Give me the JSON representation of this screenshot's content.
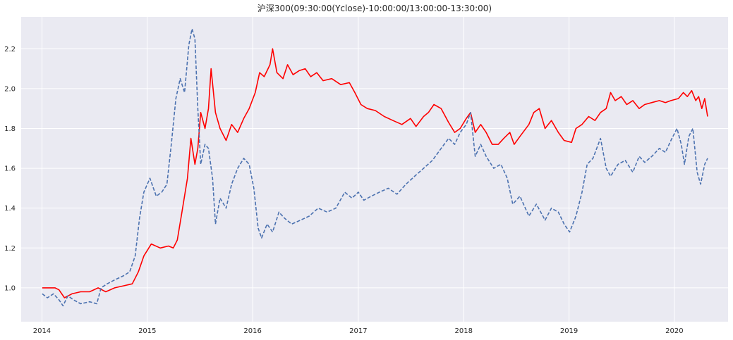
{
  "chart_data": {
    "type": "line",
    "title": "沪深300(09:30:00(Yclose)-10:00:00/13:00:00-13:30:00)",
    "xlabel": "",
    "ylabel": "",
    "x_range": [
      "2013-10-21",
      "2020-07-05"
    ],
    "y_range": [
      0.83,
      2.36
    ],
    "x_ticks": [
      "2014",
      "2015",
      "2016",
      "2017",
      "2018",
      "2019",
      "2020"
    ],
    "y_ticks": [
      "1.0",
      "1.2",
      "1.4",
      "1.6",
      "1.8",
      "2.0",
      "2.2"
    ],
    "y_tick_values": [
      1.0,
      1.2,
      1.4,
      1.6,
      1.8,
      2.0,
      2.2
    ],
    "grid": true,
    "background": "#EAEAF2",
    "series": [
      {
        "color": "#FF0000",
        "style": "solid",
        "points": [
          [
            "2014-01-02",
            1.0
          ],
          [
            "2014-02-15",
            1.0
          ],
          [
            "2014-03-01",
            0.99
          ],
          [
            "2014-03-20",
            0.95
          ],
          [
            "2014-04-15",
            0.97
          ],
          [
            "2014-05-15",
            0.98
          ],
          [
            "2014-06-15",
            0.98
          ],
          [
            "2014-07-15",
            1.0
          ],
          [
            "2014-08-10",
            0.98
          ],
          [
            "2014-09-10",
            1.0
          ],
          [
            "2014-10-10",
            1.01
          ],
          [
            "2014-11-10",
            1.02
          ],
          [
            "2014-12-01",
            1.08
          ],
          [
            "2014-12-20",
            1.16
          ],
          [
            "2015-01-15",
            1.22
          ],
          [
            "2015-02-15",
            1.2
          ],
          [
            "2015-03-15",
            1.21
          ],
          [
            "2015-04-01",
            1.2
          ],
          [
            "2015-04-15",
            1.24
          ],
          [
            "2015-05-01",
            1.38
          ],
          [
            "2015-05-20",
            1.55
          ],
          [
            "2015-06-01",
            1.75
          ],
          [
            "2015-06-15",
            1.62
          ],
          [
            "2015-06-25",
            1.7
          ],
          [
            "2015-07-05",
            1.88
          ],
          [
            "2015-07-20",
            1.8
          ],
          [
            "2015-08-01",
            1.9
          ],
          [
            "2015-08-10",
            2.1
          ],
          [
            "2015-08-25",
            1.88
          ],
          [
            "2015-09-10",
            1.8
          ],
          [
            "2015-10-01",
            1.74
          ],
          [
            "2015-10-20",
            1.82
          ],
          [
            "2015-11-10",
            1.78
          ],
          [
            "2015-12-01",
            1.85
          ],
          [
            "2015-12-20",
            1.9
          ],
          [
            "2016-01-10",
            1.98
          ],
          [
            "2016-01-25",
            2.08
          ],
          [
            "2016-02-10",
            2.06
          ],
          [
            "2016-03-01",
            2.12
          ],
          [
            "2016-03-10",
            2.2
          ],
          [
            "2016-03-25",
            2.08
          ],
          [
            "2016-04-15",
            2.05
          ],
          [
            "2016-05-01",
            2.12
          ],
          [
            "2016-05-20",
            2.07
          ],
          [
            "2016-06-10",
            2.09
          ],
          [
            "2016-07-01",
            2.1
          ],
          [
            "2016-07-20",
            2.06
          ],
          [
            "2016-08-10",
            2.08
          ],
          [
            "2016-09-01",
            2.04
          ],
          [
            "2016-10-01",
            2.05
          ],
          [
            "2016-11-01",
            2.02
          ],
          [
            "2016-12-01",
            2.03
          ],
          [
            "2016-12-20",
            1.98
          ],
          [
            "2017-01-10",
            1.92
          ],
          [
            "2017-02-01",
            1.9
          ],
          [
            "2017-03-01",
            1.89
          ],
          [
            "2017-04-01",
            1.86
          ],
          [
            "2017-05-01",
            1.84
          ],
          [
            "2017-06-01",
            1.82
          ],
          [
            "2017-07-01",
            1.85
          ],
          [
            "2017-07-20",
            1.81
          ],
          [
            "2017-08-15",
            1.86
          ],
          [
            "2017-09-01",
            1.88
          ],
          [
            "2017-09-20",
            1.92
          ],
          [
            "2017-10-15",
            1.9
          ],
          [
            "2017-11-10",
            1.83
          ],
          [
            "2017-12-01",
            1.78
          ],
          [
            "2017-12-20",
            1.8
          ],
          [
            "2018-01-10",
            1.85
          ],
          [
            "2018-01-25",
            1.88
          ],
          [
            "2018-02-10",
            1.78
          ],
          [
            "2018-03-01",
            1.82
          ],
          [
            "2018-03-20",
            1.78
          ],
          [
            "2018-04-10",
            1.72
          ],
          [
            "2018-05-01",
            1.72
          ],
          [
            "2018-05-20",
            1.75
          ],
          [
            "2018-06-10",
            1.78
          ],
          [
            "2018-06-25",
            1.72
          ],
          [
            "2018-07-15",
            1.76
          ],
          [
            "2018-08-15",
            1.82
          ],
          [
            "2018-09-01",
            1.88
          ],
          [
            "2018-09-20",
            1.9
          ],
          [
            "2018-10-10",
            1.8
          ],
          [
            "2018-11-01",
            1.84
          ],
          [
            "2018-11-25",
            1.78
          ],
          [
            "2018-12-15",
            1.74
          ],
          [
            "2019-01-10",
            1.73
          ],
          [
            "2019-01-25",
            1.8
          ],
          [
            "2019-02-15",
            1.82
          ],
          [
            "2019-03-10",
            1.86
          ],
          [
            "2019-04-01",
            1.84
          ],
          [
            "2019-04-20",
            1.88
          ],
          [
            "2019-05-10",
            1.9
          ],
          [
            "2019-05-25",
            1.98
          ],
          [
            "2019-06-10",
            1.94
          ],
          [
            "2019-07-01",
            1.96
          ],
          [
            "2019-07-20",
            1.92
          ],
          [
            "2019-08-10",
            1.94
          ],
          [
            "2019-09-01",
            1.9
          ],
          [
            "2019-09-20",
            1.92
          ],
          [
            "2019-10-15",
            1.93
          ],
          [
            "2019-11-10",
            1.94
          ],
          [
            "2019-12-01",
            1.93
          ],
          [
            "2019-12-20",
            1.94
          ],
          [
            "2020-01-15",
            1.95
          ],
          [
            "2020-02-01",
            1.98
          ],
          [
            "2020-02-15",
            1.96
          ],
          [
            "2020-03-01",
            1.99
          ],
          [
            "2020-03-15",
            1.94
          ],
          [
            "2020-03-25",
            1.96
          ],
          [
            "2020-04-05",
            1.9
          ],
          [
            "2020-04-15",
            1.95
          ],
          [
            "2020-04-25",
            1.86
          ]
        ]
      },
      {
        "color": "#4C72B0",
        "style": "dashed",
        "points": [
          [
            "2014-01-02",
            0.97
          ],
          [
            "2014-01-20",
            0.95
          ],
          [
            "2014-02-10",
            0.97
          ],
          [
            "2014-03-01",
            0.94
          ],
          [
            "2014-03-15",
            0.91
          ],
          [
            "2014-04-01",
            0.96
          ],
          [
            "2014-04-20",
            0.94
          ],
          [
            "2014-05-15",
            0.92
          ],
          [
            "2014-06-15",
            0.93
          ],
          [
            "2014-07-10",
            0.92
          ],
          [
            "2014-07-25",
            1.0
          ],
          [
            "2014-08-15",
            1.02
          ],
          [
            "2014-09-10",
            1.04
          ],
          [
            "2014-10-10",
            1.06
          ],
          [
            "2014-11-01",
            1.08
          ],
          [
            "2014-11-20",
            1.16
          ],
          [
            "2014-12-05",
            1.35
          ],
          [
            "2014-12-20",
            1.48
          ],
          [
            "2015-01-10",
            1.55
          ],
          [
            "2015-02-01",
            1.46
          ],
          [
            "2015-02-20",
            1.48
          ],
          [
            "2015-03-10",
            1.52
          ],
          [
            "2015-03-25",
            1.72
          ],
          [
            "2015-04-10",
            1.95
          ],
          [
            "2015-04-25",
            2.05
          ],
          [
            "2015-05-10",
            1.98
          ],
          [
            "2015-05-25",
            2.22
          ],
          [
            "2015-06-05",
            2.3
          ],
          [
            "2015-06-15",
            2.25
          ],
          [
            "2015-06-25",
            1.9
          ],
          [
            "2015-07-05",
            1.62
          ],
          [
            "2015-07-20",
            1.72
          ],
          [
            "2015-08-01",
            1.7
          ],
          [
            "2015-08-15",
            1.55
          ],
          [
            "2015-08-25",
            1.32
          ],
          [
            "2015-09-10",
            1.45
          ],
          [
            "2015-10-01",
            1.4
          ],
          [
            "2015-10-20",
            1.52
          ],
          [
            "2015-11-10",
            1.6
          ],
          [
            "2015-12-01",
            1.65
          ],
          [
            "2015-12-20",
            1.62
          ],
          [
            "2016-01-05",
            1.5
          ],
          [
            "2016-01-20",
            1.3
          ],
          [
            "2016-02-01",
            1.25
          ],
          [
            "2016-02-20",
            1.32
          ],
          [
            "2016-03-10",
            1.28
          ],
          [
            "2016-04-01",
            1.38
          ],
          [
            "2016-04-20",
            1.35
          ],
          [
            "2016-05-15",
            1.32
          ],
          [
            "2016-06-15",
            1.34
          ],
          [
            "2016-07-15",
            1.36
          ],
          [
            "2016-08-15",
            1.4
          ],
          [
            "2016-09-15",
            1.38
          ],
          [
            "2016-10-15",
            1.4
          ],
          [
            "2016-11-15",
            1.48
          ],
          [
            "2016-12-10",
            1.45
          ],
          [
            "2017-01-01",
            1.48
          ],
          [
            "2017-01-20",
            1.44
          ],
          [
            "2017-02-15",
            1.46
          ],
          [
            "2017-03-15",
            1.48
          ],
          [
            "2017-04-15",
            1.5
          ],
          [
            "2017-05-15",
            1.47
          ],
          [
            "2017-06-15",
            1.52
          ],
          [
            "2017-07-15",
            1.56
          ],
          [
            "2017-08-15",
            1.6
          ],
          [
            "2017-09-15",
            1.64
          ],
          [
            "2017-10-15",
            1.7
          ],
          [
            "2017-11-10",
            1.75
          ],
          [
            "2017-12-01",
            1.72
          ],
          [
            "2017-12-20",
            1.78
          ],
          [
            "2018-01-10",
            1.82
          ],
          [
            "2018-01-25",
            1.88
          ],
          [
            "2018-02-10",
            1.66
          ],
          [
            "2018-03-01",
            1.72
          ],
          [
            "2018-03-20",
            1.66
          ],
          [
            "2018-04-15",
            1.6
          ],
          [
            "2018-05-10",
            1.62
          ],
          [
            "2018-06-01",
            1.55
          ],
          [
            "2018-06-20",
            1.42
          ],
          [
            "2018-07-15",
            1.46
          ],
          [
            "2018-08-15",
            1.36
          ],
          [
            "2018-09-10",
            1.42
          ],
          [
            "2018-10-10",
            1.34
          ],
          [
            "2018-11-01",
            1.4
          ],
          [
            "2018-11-25",
            1.38
          ],
          [
            "2018-12-15",
            1.32
          ],
          [
            "2019-01-03",
            1.28
          ],
          [
            "2019-01-25",
            1.36
          ],
          [
            "2019-02-15",
            1.48
          ],
          [
            "2019-03-05",
            1.62
          ],
          [
            "2019-03-25",
            1.65
          ],
          [
            "2019-04-20",
            1.75
          ],
          [
            "2019-05-10",
            1.6
          ],
          [
            "2019-05-25",
            1.56
          ],
          [
            "2019-06-20",
            1.62
          ],
          [
            "2019-07-15",
            1.64
          ],
          [
            "2019-08-10",
            1.58
          ],
          [
            "2019-09-01",
            1.66
          ],
          [
            "2019-09-20",
            1.63
          ],
          [
            "2019-10-15",
            1.66
          ],
          [
            "2019-11-10",
            1.7
          ],
          [
            "2019-12-01",
            1.68
          ],
          [
            "2019-12-20",
            1.74
          ],
          [
            "2020-01-10",
            1.8
          ],
          [
            "2020-01-25",
            1.72
          ],
          [
            "2020-02-05",
            1.62
          ],
          [
            "2020-02-20",
            1.76
          ],
          [
            "2020-03-05",
            1.8
          ],
          [
            "2020-03-20",
            1.58
          ],
          [
            "2020-04-01",
            1.52
          ],
          [
            "2020-04-15",
            1.62
          ],
          [
            "2020-04-25",
            1.65
          ]
        ]
      }
    ]
  }
}
